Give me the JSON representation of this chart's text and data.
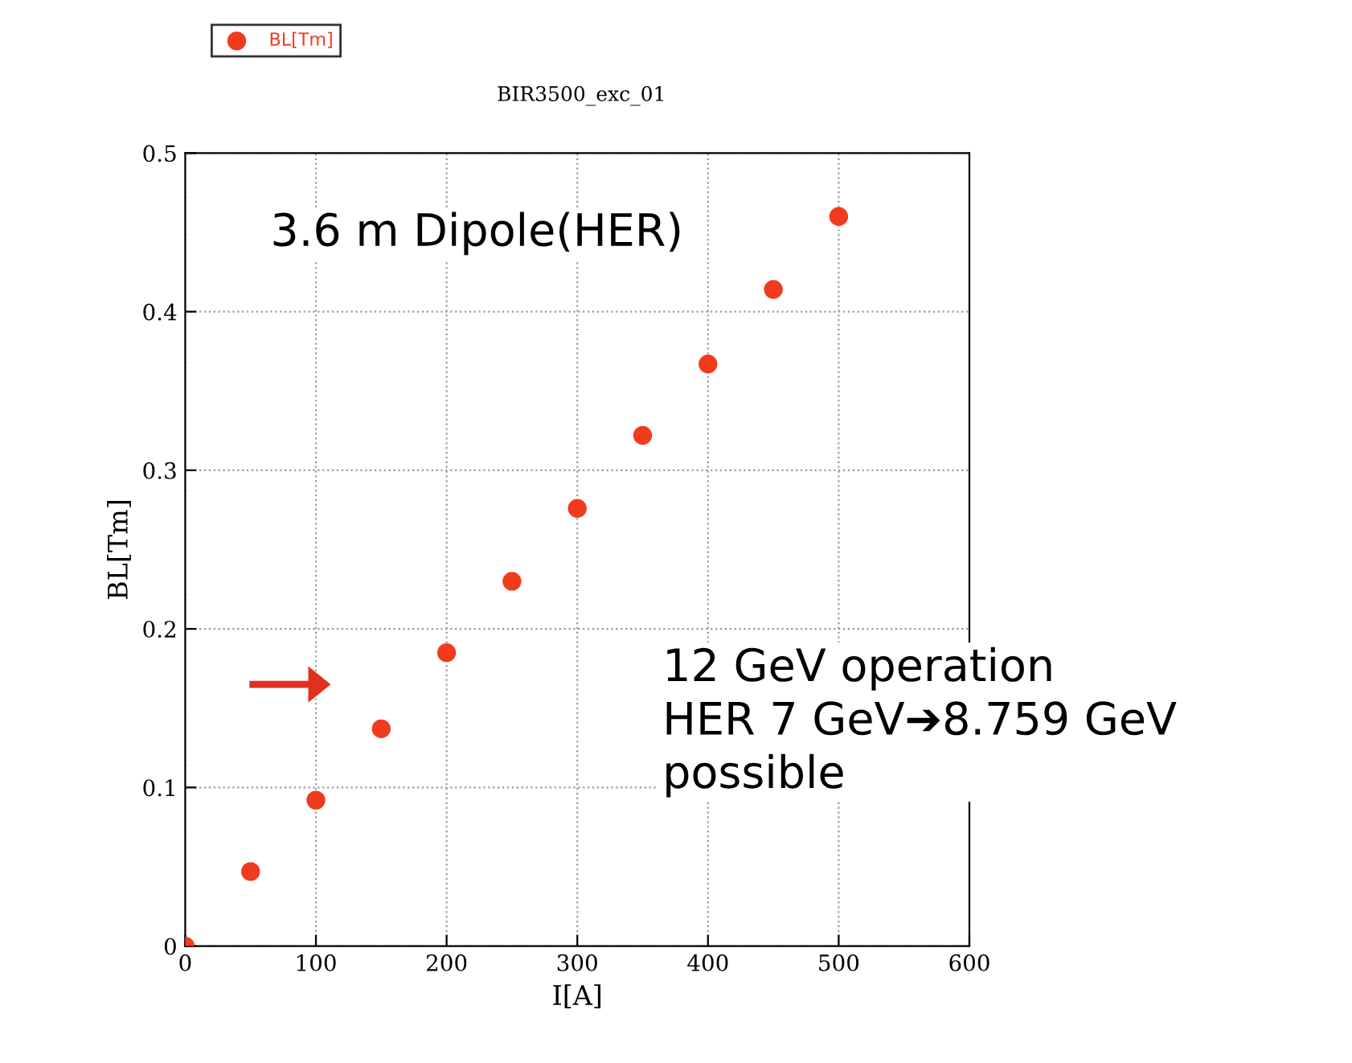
{
  "chart_data": {
    "type": "scatter",
    "title": "BIR3500_exc_01",
    "xlabel": "I[A]",
    "ylabel": "BL[Tm]",
    "x": [
      0,
      50,
      100,
      150,
      200,
      250,
      300,
      350,
      400,
      450,
      500
    ],
    "series": [
      {
        "name": "BL[Tm]",
        "color": "#f03c1e",
        "values": [
          0,
          0.047,
          0.092,
          0.137,
          0.185,
          0.23,
          0.276,
          0.322,
          0.367,
          0.414,
          0.46
        ]
      }
    ],
    "xlim": [
      0,
      600
    ],
    "xticks": [
      0,
      100,
      200,
      300,
      400,
      500,
      600
    ],
    "ylim": [
      0,
      0.5
    ],
    "yticks": [
      0,
      0.1,
      0.2,
      0.3,
      0.4,
      0.5
    ],
    "grid": true,
    "legend": "top left",
    "marker": "circle",
    "annotations": [
      "3.6 m Dipole(HER)",
      "12 GeV operation\nHER 7 GeV➔8.759 GeV\npossible"
    ]
  }
}
